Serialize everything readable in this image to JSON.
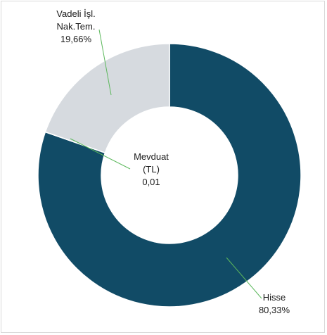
{
  "chart_data": {
    "type": "pie",
    "variant": "donut",
    "slices": [
      {
        "label_lines": [
          "Hisse"
        ],
        "value_label": "80,33%",
        "value": 80.33,
        "color": "#114b66"
      },
      {
        "label_lines": [
          "Mevduat",
          "(TL)"
        ],
        "value_label": "0,01",
        "value": 0.01,
        "color": "#ffffff"
      },
      {
        "label_lines": [
          "Vadeli İşl.",
          "Nak.Tem."
        ],
        "value_label": "19,66%",
        "value": 19.66,
        "color": "#d6dadf"
      }
    ],
    "leader_line_color": "#5cb85c",
    "legend": "none"
  }
}
